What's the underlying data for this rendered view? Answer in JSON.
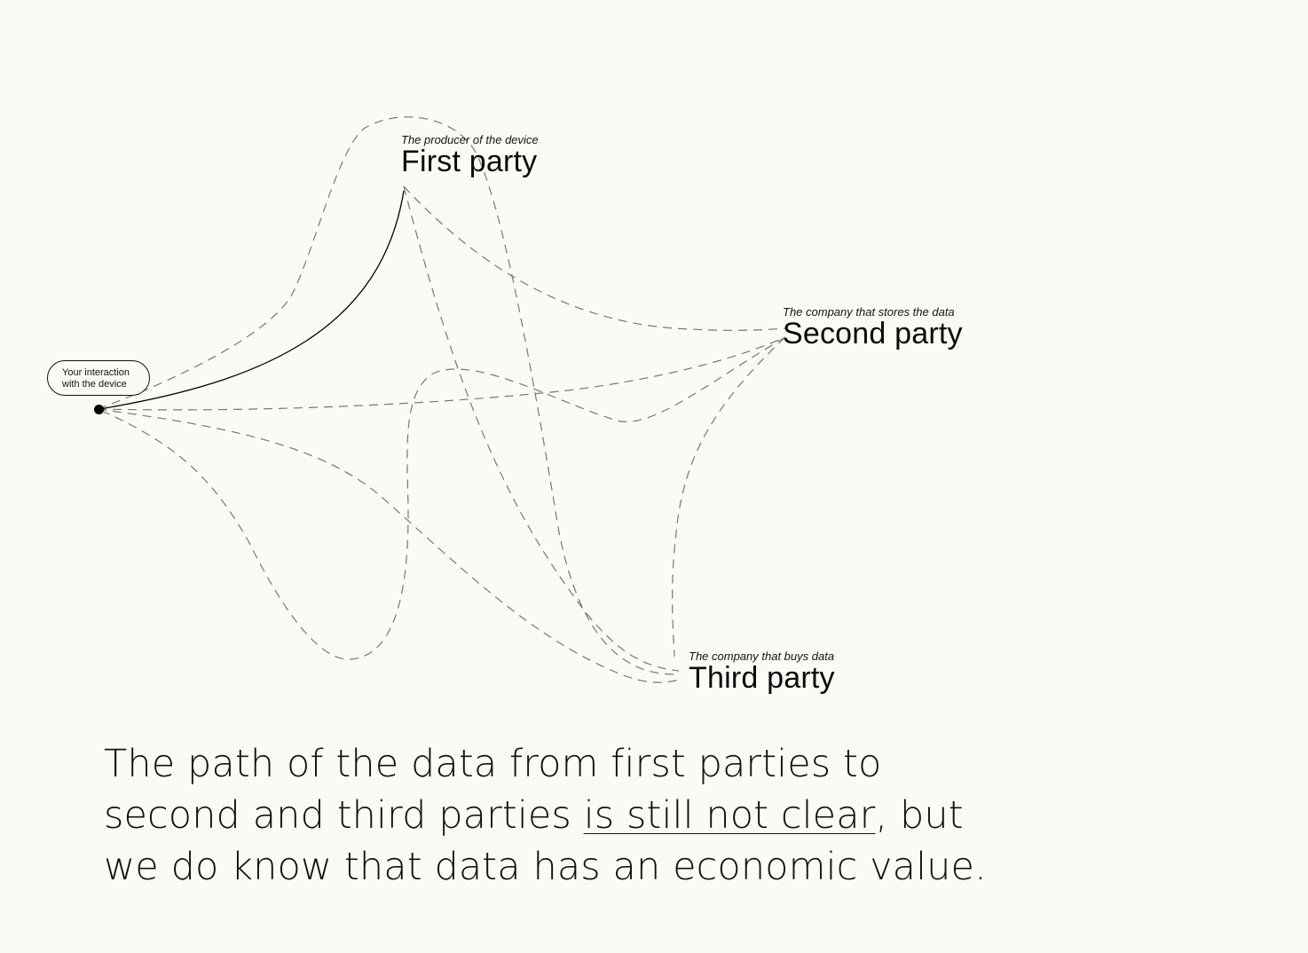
{
  "origin": {
    "line1": "Your interaction",
    "line2": "with the device"
  },
  "first_party": {
    "subtitle": "The producer of the device",
    "title": "First party"
  },
  "second_party": {
    "subtitle": "The company that stores the data",
    "title": "Second party"
  },
  "third_party": {
    "subtitle": "The company that buys data",
    "title": "Third party"
  },
  "caption": {
    "before": "The path of the data from first parties to second and third parties ",
    "highlight": "is still not clear",
    "after": ", but we do know that data has an economic value."
  },
  "colors": {
    "background": "#fbfbf6",
    "solid_path": "#000000",
    "dashed_path": "#6f7a78"
  }
}
